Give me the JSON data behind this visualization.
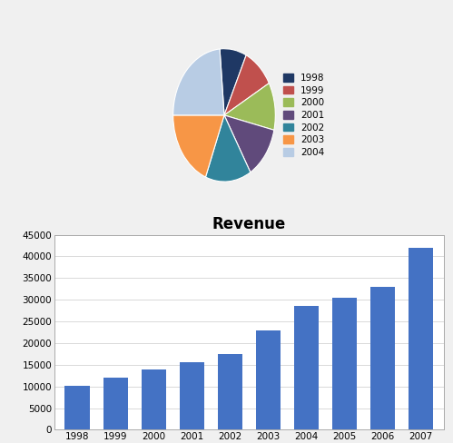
{
  "title": "Revenue",
  "pie_labels": [
    "1998",
    "1999",
    "2000",
    "2001",
    "2002",
    "2003",
    "2004"
  ],
  "pie_values": [
    10200,
    12000,
    14000,
    15500,
    17500,
    23000,
    28500
  ],
  "pie_colors": [
    "#1F3864",
    "#C0504D",
    "#9BBB59",
    "#604A7B",
    "#31849B",
    "#F79646",
    "#B8CCE4"
  ],
  "extra_slice_color": "#E6B9B8",
  "extra_slice2_color": "#CCC0DA",
  "bar_years": [
    "1998",
    "1999",
    "2000",
    "2001",
    "2002",
    "2003",
    "2004",
    "2005",
    "2006",
    "2007"
  ],
  "bar_values": [
    10200,
    12000,
    14000,
    15500,
    17500,
    23000,
    28500,
    30500,
    33000,
    42000
  ],
  "bar_color": "#4472C4",
  "bar_title": "Revenue",
  "bar_ylim": [
    0,
    45000
  ],
  "bar_yticks": [
    0,
    5000,
    10000,
    15000,
    20000,
    25000,
    30000,
    35000,
    40000,
    45000
  ],
  "bg_color": "#FFFFFF",
  "grid_color": "#D3D3D3",
  "border_color": "#AAAAAA",
  "fig_bg": "#F0F0F0"
}
